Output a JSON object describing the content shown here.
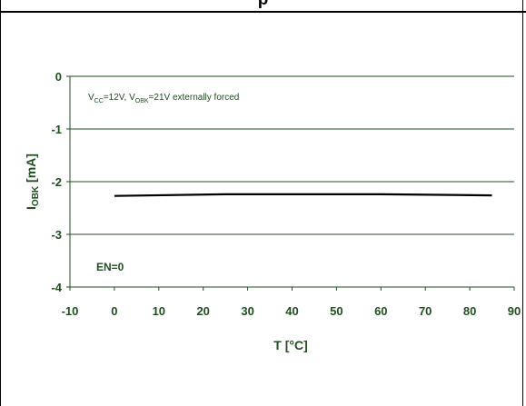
{
  "header": {
    "fragment": "p"
  },
  "chart_data": {
    "type": "line",
    "title": "",
    "xlabel": "T [°C]",
    "ylabel": {
      "base": "I",
      "sub": "OBK",
      "unit": " [mA]"
    },
    "xlim": [
      -10,
      90
    ],
    "ylim": [
      -4,
      0
    ],
    "xticks": [
      -10,
      0,
      10,
      20,
      30,
      40,
      50,
      60,
      70,
      80,
      90
    ],
    "yticks": [
      0,
      -1,
      -2,
      -3,
      -4
    ],
    "grid": {
      "horizontal": true,
      "vertical": false
    },
    "series": [
      {
        "x": [
          0,
          25,
          60,
          85
        ],
        "y": [
          -2.27,
          -2.24,
          -2.24,
          -2.26
        ]
      }
    ],
    "annotations": {
      "conditions": [
        {
          "t": "V",
          "s": "normal"
        },
        {
          "t": "CC",
          "s": "sub"
        },
        {
          "t": "=12V, V",
          "s": "normal"
        },
        {
          "t": "OBK",
          "s": "sub"
        },
        {
          "t": "=21V  externally forced",
          "s": "normal"
        }
      ],
      "en": "EN=0"
    },
    "colors": {
      "line": "#000000",
      "grid": "#1f4e1f",
      "text": "#1f4e1f"
    }
  }
}
